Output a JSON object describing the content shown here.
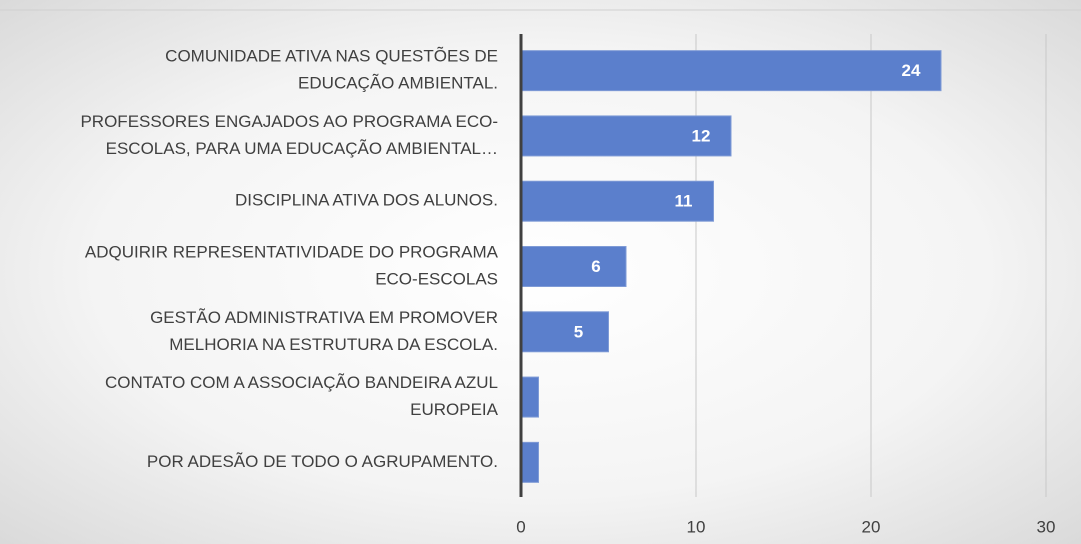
{
  "chart_data": {
    "type": "barh",
    "categories": [
      [
        "COMUNIDADE ATIVA NAS QUESTÕES DE",
        "EDUCAÇÃO AMBIENTAL."
      ],
      [
        "PROFESSORES ENGAJADOS AO PROGRAMA ECO-",
        "ESCOLAS, PARA UMA  EDUCAÇÃO AMBIENTAL…"
      ],
      [
        "DISCIPLINA ATIVA DOS ALUNOS."
      ],
      [
        "ADQUIRIR REPRESENTATIVIDADE DO PROGRAMA",
        "ECO-ESCOLAS"
      ],
      [
        "GESTÃO ADMINISTRATIVA EM PROMOVER",
        "MELHORIA NA ESTRUTURA DA ESCOLA."
      ],
      [
        "CONTATO COM A ASSOCIAÇÃO BANDEIRA AZUL",
        "EUROPEIA"
      ],
      [
        "POR ADESÃO DE TODO O AGRUPAMENTO."
      ]
    ],
    "values": [
      24,
      12,
      11,
      6,
      5,
      1,
      1
    ],
    "value_labels": [
      "24",
      "12",
      "11",
      "6",
      "5",
      null,
      null
    ],
    "color": "#5b7fcc",
    "xlim": [
      0,
      30
    ],
    "xticks": [
      0,
      10,
      20,
      30
    ],
    "grid": true
  }
}
